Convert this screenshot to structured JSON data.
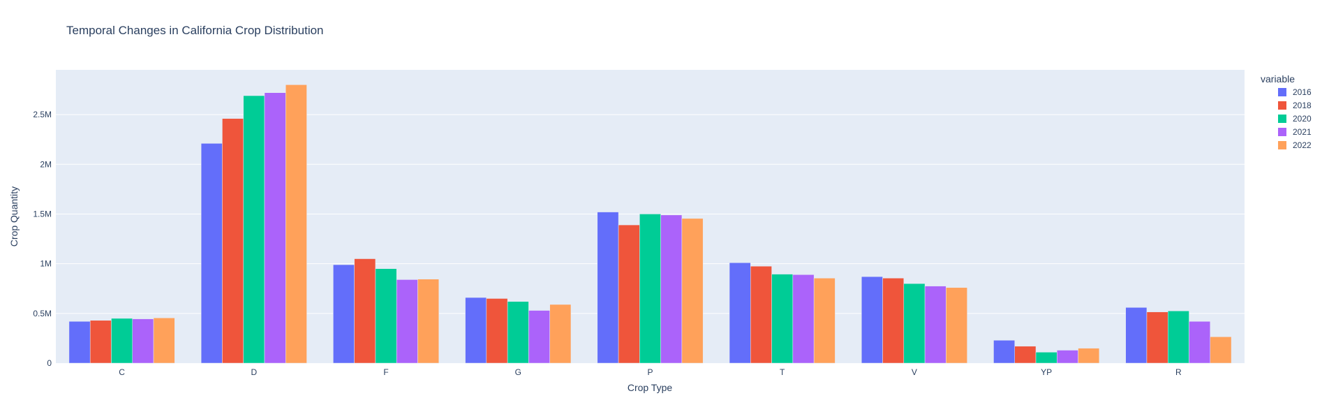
{
  "colors": {
    "plot_bg": "#e5ecf6",
    "grid": "#ffffff",
    "text": "#2a3f5f",
    "series": [
      "#636efa",
      "#ef553b",
      "#00cc96",
      "#ab63fa",
      "#ffa15a"
    ]
  },
  "chart_data": {
    "type": "bar",
    "barmode": "group",
    "title": "Temporal Changes in California Crop Distribution",
    "xlabel": "Crop Type",
    "ylabel": "Crop Quantity",
    "categories": [
      "C",
      "D",
      "F",
      "G",
      "P",
      "T",
      "V",
      "YP",
      "R"
    ],
    "ylim": [
      0,
      2950000
    ],
    "yticks": [
      0,
      500000,
      1000000,
      1500000,
      2000000,
      2500000
    ],
    "ytick_labels": [
      "0",
      "0.5M",
      "1M",
      "1.5M",
      "2M",
      "2.5M"
    ],
    "grid": true,
    "legend": {
      "title": "variable",
      "placement": "right"
    },
    "series": [
      {
        "name": "2016",
        "values": [
          420000,
          2210000,
          990000,
          660000,
          1520000,
          1010000,
          870000,
          230000,
          560000
        ]
      },
      {
        "name": "2018",
        "values": [
          430000,
          2460000,
          1050000,
          650000,
          1390000,
          975000,
          855000,
          170000,
          515000
        ]
      },
      {
        "name": "2020",
        "values": [
          450000,
          2690000,
          950000,
          620000,
          1500000,
          895000,
          800000,
          110000,
          525000
        ]
      },
      {
        "name": "2021",
        "values": [
          445000,
          2720000,
          840000,
          530000,
          1490000,
          890000,
          775000,
          130000,
          420000
        ]
      },
      {
        "name": "2022",
        "values": [
          455000,
          2800000,
          845000,
          590000,
          1455000,
          855000,
          760000,
          150000,
          265000
        ]
      }
    ]
  }
}
